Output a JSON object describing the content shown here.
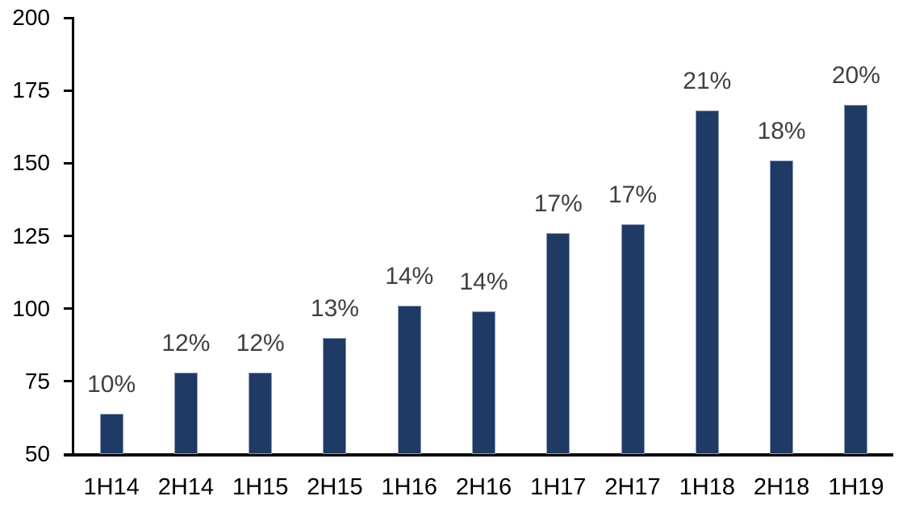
{
  "chart_data": {
    "type": "bar",
    "title": "",
    "xlabel": "",
    "ylabel": "",
    "categories": [
      "1H14",
      "2H14",
      "1H15",
      "2H15",
      "1H16",
      "2H16",
      "1H17",
      "2H17",
      "1H18",
      "2H18",
      "1H19"
    ],
    "values": [
      64,
      78,
      78,
      90,
      101,
      99,
      126,
      129,
      168,
      151,
      170
    ],
    "bar_labels": [
      "10%",
      "12%",
      "12%",
      "13%",
      "14%",
      "14%",
      "17%",
      "17%",
      "21%",
      "18%",
      "20%"
    ],
    "ylim": [
      50,
      200
    ],
    "yticks": [
      50,
      75,
      100,
      125,
      150,
      175,
      200
    ],
    "grid": false,
    "legend": "none",
    "colors": {
      "bar_fill": "#1F3A64",
      "bar_border": "#8C9CB6",
      "data_label": "#404040",
      "axis_label": "#000000",
      "axis_line": "#000000",
      "background": "#FFFFFF"
    }
  }
}
